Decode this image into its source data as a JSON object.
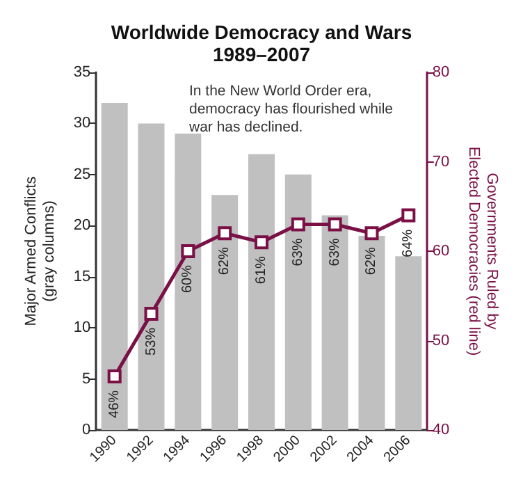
{
  "chart_data": {
    "type": "bar",
    "title": "Worldwide Democracy and Wars\n1989–2007",
    "categories": [
      "1990",
      "1992",
      "1994",
      "1996",
      "1998",
      "2000",
      "2002",
      "2004",
      "2006"
    ],
    "ylabel": "Major Armed Conflicts\n(gray columns)",
    "y2label": "Governments Ruled by\nElected Democracies (red line)",
    "annotations": [
      "In the New World Order era, democracy has flourished while war has declined."
    ],
    "series": [
      {
        "color": "#c0c0c0",
        "values": [
          32,
          30,
          29,
          23,
          27,
          25,
          21,
          19,
          17
        ]
      },
      {
        "type": "line",
        "axis": "y2",
        "color": "#7a1046",
        "marker": "square",
        "values": [
          46,
          53,
          60,
          62,
          61,
          63,
          63,
          62,
          64
        ],
        "value_labels": [
          "46%",
          "53%",
          "60%",
          "62%",
          "61%",
          "63%",
          "63%",
          "62%",
          "64%"
        ]
      }
    ],
    "ylim": [
      0,
      35
    ],
    "yticks": [
      0,
      5,
      10,
      15,
      20,
      25,
      30,
      35
    ],
    "y2lim": [
      40,
      80
    ],
    "y2ticks": [
      40,
      50,
      60,
      70,
      80
    ],
    "grid": false
  }
}
